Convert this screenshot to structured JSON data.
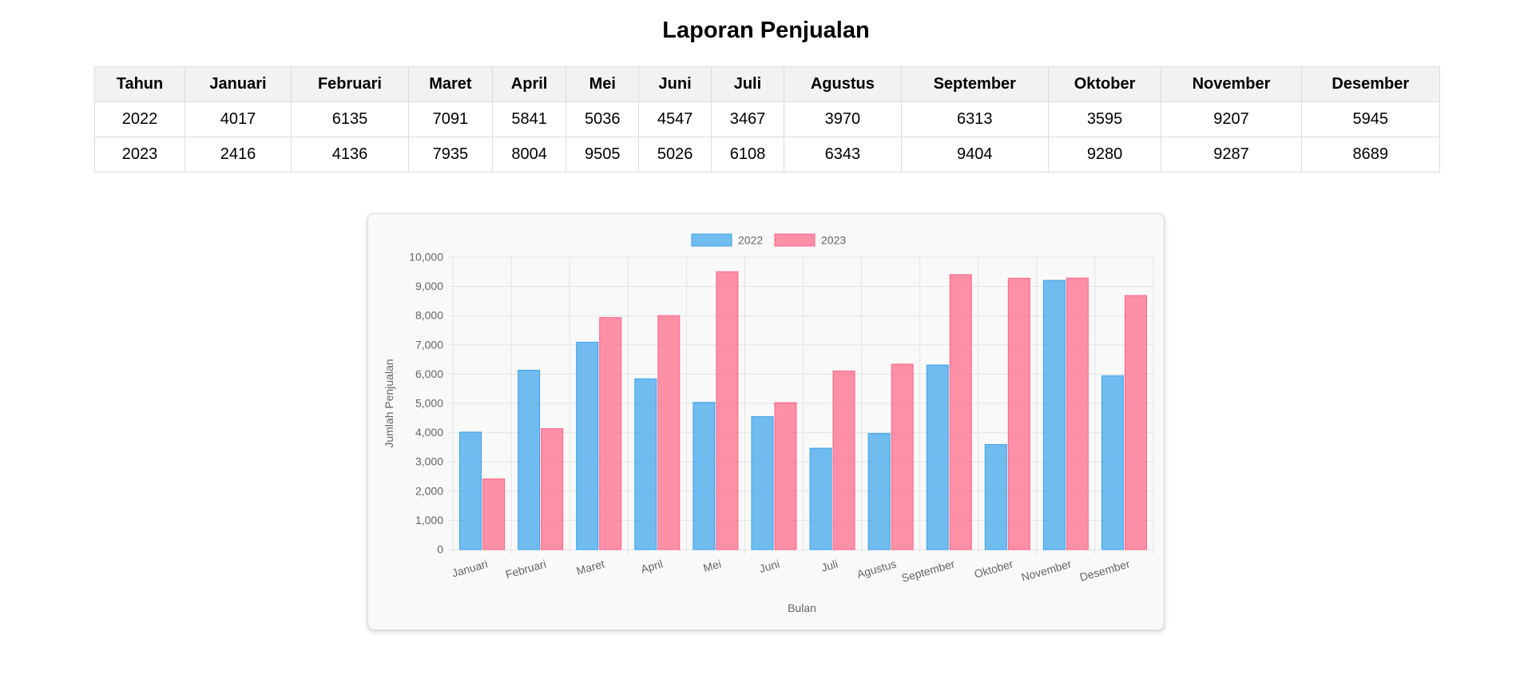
{
  "page": {
    "title": "Laporan Penjualan"
  },
  "table": {
    "headers": [
      "Tahun",
      "Januari",
      "Februari",
      "Maret",
      "April",
      "Mei",
      "Juni",
      "Juli",
      "Agustus",
      "September",
      "Oktober",
      "November",
      "Desember"
    ],
    "rows": [
      [
        "2022",
        "4017",
        "6135",
        "7091",
        "5841",
        "5036",
        "4547",
        "3467",
        "3970",
        "6313",
        "3595",
        "9207",
        "5945"
      ],
      [
        "2023",
        "2416",
        "4136",
        "7935",
        "8004",
        "9505",
        "5026",
        "6108",
        "6343",
        "9404",
        "9280",
        "9287",
        "8689"
      ]
    ]
  },
  "chart_data": {
    "type": "bar",
    "title": "",
    "xlabel": "Bulan",
    "ylabel": "Jumlah Penjualan",
    "categories": [
      "Januari",
      "Februari",
      "Maret",
      "April",
      "Mei",
      "Juni",
      "Juli",
      "Agustus",
      "September",
      "Oktober",
      "November",
      "Desember"
    ],
    "series": [
      {
        "name": "2022",
        "values": [
          4017,
          6135,
          7091,
          5841,
          5036,
          4547,
          3467,
          3970,
          6313,
          3595,
          9207,
          5945
        ],
        "color": "#36a2eb"
      },
      {
        "name": "2023",
        "values": [
          2416,
          4136,
          7935,
          8004,
          9505,
          5026,
          6108,
          6343,
          9404,
          9280,
          9287,
          8689
        ],
        "color": "#ff6384"
      }
    ],
    "ylim": [
      0,
      10000
    ],
    "yticks": [
      "0",
      "1,000",
      "2,000",
      "3,000",
      "4,000",
      "5,000",
      "6,000",
      "7,000",
      "8,000",
      "9,000",
      "10,000"
    ],
    "grid": true,
    "legend": "top-center"
  }
}
